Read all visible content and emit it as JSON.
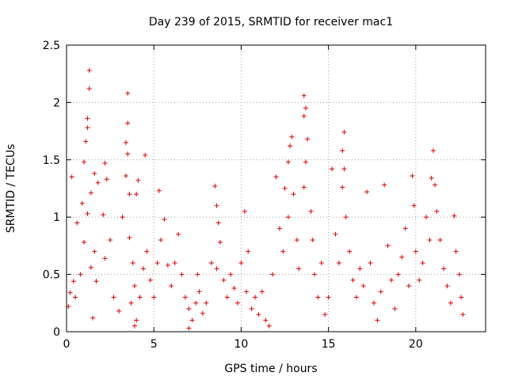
{
  "chart_data": {
    "type": "scatter",
    "title": "Day 239 of 2015, SRMTID for receiver mac1",
    "xlabel": "GPS time / hours",
    "ylabel": "SRMTID / TECUs",
    "xlim": [
      0,
      24
    ],
    "ylim": [
      0,
      2.5
    ],
    "x_ticks": [
      0,
      5,
      10,
      15,
      20
    ],
    "x_tick_labels": [
      "0",
      "5",
      "10",
      "15",
      "20"
    ],
    "y_ticks": [
      0,
      0.5,
      1,
      1.5,
      2,
      2.5
    ],
    "y_tick_labels": [
      "0",
      "0.5",
      "1",
      "1.5",
      "2",
      "2.5"
    ],
    "grid": true,
    "marker": "+",
    "color": "#e00000",
    "series": [
      {
        "name": "SRMTID",
        "points": [
          [
            1.3,
            2.28
          ],
          [
            1.3,
            2.12
          ],
          [
            1.2,
            1.86
          ],
          [
            1.2,
            1.78
          ],
          [
            1.1,
            1.66
          ],
          [
            1.0,
            1.48
          ],
          [
            0.3,
            1.35
          ],
          [
            1.6,
            1.38
          ],
          [
            1.4,
            1.21
          ],
          [
            1.8,
            1.3
          ],
          [
            2.2,
            1.47
          ],
          [
            2.3,
            1.33
          ],
          [
            0.9,
            1.12
          ],
          [
            0.6,
            0.95
          ],
          [
            1.2,
            1.03
          ],
          [
            2.1,
            1.02
          ],
          [
            2.5,
            0.8
          ],
          [
            2.2,
            0.64
          ],
          [
            1.0,
            0.78
          ],
          [
            1.6,
            0.7
          ],
          [
            0.4,
            0.44
          ],
          [
            0.2,
            0.34
          ],
          [
            0.5,
            0.3
          ],
          [
            0.8,
            0.5
          ],
          [
            1.4,
            0.56
          ],
          [
            1.7,
            0.44
          ],
          [
            1.5,
            0.12
          ],
          [
            0.1,
            0.22
          ],
          [
            2.7,
            0.3
          ],
          [
            3.0,
            0.18
          ],
          [
            3.5,
            2.08
          ],
          [
            3.5,
            1.82
          ],
          [
            3.4,
            1.65
          ],
          [
            3.5,
            1.55
          ],
          [
            3.4,
            1.36
          ],
          [
            3.6,
            1.2
          ],
          [
            4.1,
            1.32
          ],
          [
            4.0,
            1.2
          ],
          [
            4.5,
            1.54
          ],
          [
            3.2,
            1.0
          ],
          [
            3.6,
            0.82
          ],
          [
            3.8,
            0.6
          ],
          [
            3.9,
            0.4
          ],
          [
            3.7,
            0.25
          ],
          [
            3.9,
            0.05
          ],
          [
            4.0,
            0.1
          ],
          [
            4.2,
            0.3
          ],
          [
            4.4,
            0.55
          ],
          [
            4.6,
            0.7
          ],
          [
            4.8,
            0.45
          ],
          [
            5.0,
            0.3
          ],
          [
            5.2,
            0.6
          ],
          [
            5.3,
            1.23
          ],
          [
            5.6,
            0.98
          ],
          [
            5.4,
            0.8
          ],
          [
            5.8,
            0.58
          ],
          [
            6.0,
            0.4
          ],
          [
            6.2,
            0.6
          ],
          [
            6.4,
            0.85
          ],
          [
            6.6,
            0.5
          ],
          [
            6.8,
            0.3
          ],
          [
            7.0,
            0.2
          ],
          [
            7.2,
            0.1
          ],
          [
            7.0,
            0.03
          ],
          [
            7.4,
            0.25
          ],
          [
            7.5,
            0.5
          ],
          [
            7.6,
            0.35
          ],
          [
            7.8,
            0.16
          ],
          [
            8.0,
            0.25
          ],
          [
            8.3,
            0.6
          ],
          [
            8.5,
            1.27
          ],
          [
            8.6,
            1.1
          ],
          [
            8.7,
            0.95
          ],
          [
            8.8,
            0.78
          ],
          [
            8.6,
            0.55
          ],
          [
            9.0,
            0.45
          ],
          [
            9.2,
            0.3
          ],
          [
            9.4,
            0.5
          ],
          [
            9.6,
            0.38
          ],
          [
            9.8,
            0.25
          ],
          [
            10.0,
            0.6
          ],
          [
            10.2,
            1.05
          ],
          [
            10.4,
            0.7
          ],
          [
            10.3,
            0.35
          ],
          [
            10.6,
            0.2
          ],
          [
            10.8,
            0.3
          ],
          [
            11.0,
            0.15
          ],
          [
            11.2,
            0.35
          ],
          [
            11.4,
            0.1
          ],
          [
            11.6,
            0.05
          ],
          [
            11.8,
            0.5
          ],
          [
            12.0,
            1.35
          ],
          [
            12.2,
            0.9
          ],
          [
            12.4,
            0.7
          ],
          [
            12.5,
            1.25
          ],
          [
            12.7,
            1.0
          ],
          [
            12.8,
            1.62
          ],
          [
            12.9,
            1.7
          ],
          [
            12.7,
            1.48
          ],
          [
            13.0,
            1.2
          ],
          [
            13.2,
            0.8
          ],
          [
            13.3,
            0.55
          ],
          [
            13.6,
            2.06
          ],
          [
            13.7,
            1.95
          ],
          [
            13.6,
            1.88
          ],
          [
            13.8,
            1.68
          ],
          [
            13.7,
            1.48
          ],
          [
            13.6,
            1.26
          ],
          [
            14.0,
            1.05
          ],
          [
            14.1,
            0.8
          ],
          [
            14.2,
            0.5
          ],
          [
            14.4,
            0.3
          ],
          [
            14.6,
            0.6
          ],
          [
            14.8,
            0.15
          ],
          [
            15.0,
            0.3
          ],
          [
            15.2,
            1.42
          ],
          [
            15.4,
            0.85
          ],
          [
            15.6,
            0.6
          ],
          [
            15.9,
            1.74
          ],
          [
            15.8,
            1.58
          ],
          [
            15.9,
            1.42
          ],
          [
            15.8,
            1.26
          ],
          [
            16.0,
            1.0
          ],
          [
            16.2,
            0.7
          ],
          [
            16.4,
            0.45
          ],
          [
            16.6,
            0.3
          ],
          [
            16.8,
            0.55
          ],
          [
            17.0,
            0.4
          ],
          [
            17.2,
            1.22
          ],
          [
            17.4,
            0.6
          ],
          [
            17.6,
            0.25
          ],
          [
            17.8,
            0.1
          ],
          [
            18.0,
            0.35
          ],
          [
            18.2,
            1.28
          ],
          [
            18.4,
            0.75
          ],
          [
            18.6,
            0.45
          ],
          [
            18.8,
            0.2
          ],
          [
            19.0,
            0.5
          ],
          [
            19.2,
            0.65
          ],
          [
            19.4,
            0.9
          ],
          [
            19.6,
            0.4
          ],
          [
            19.8,
            1.36
          ],
          [
            19.9,
            1.1
          ],
          [
            20.0,
            0.7
          ],
          [
            20.2,
            0.45
          ],
          [
            20.4,
            0.6
          ],
          [
            20.6,
            1.0
          ],
          [
            20.8,
            0.8
          ],
          [
            20.9,
            1.34
          ],
          [
            21.0,
            1.58
          ],
          [
            21.1,
            1.28
          ],
          [
            21.2,
            1.05
          ],
          [
            21.4,
            0.8
          ],
          [
            21.6,
            0.55
          ],
          [
            21.8,
            0.4
          ],
          [
            22.0,
            0.25
          ],
          [
            22.2,
            1.01
          ],
          [
            22.3,
            0.7
          ],
          [
            22.5,
            0.5
          ],
          [
            22.6,
            0.3
          ],
          [
            22.7,
            0.15
          ]
        ]
      }
    ]
  }
}
